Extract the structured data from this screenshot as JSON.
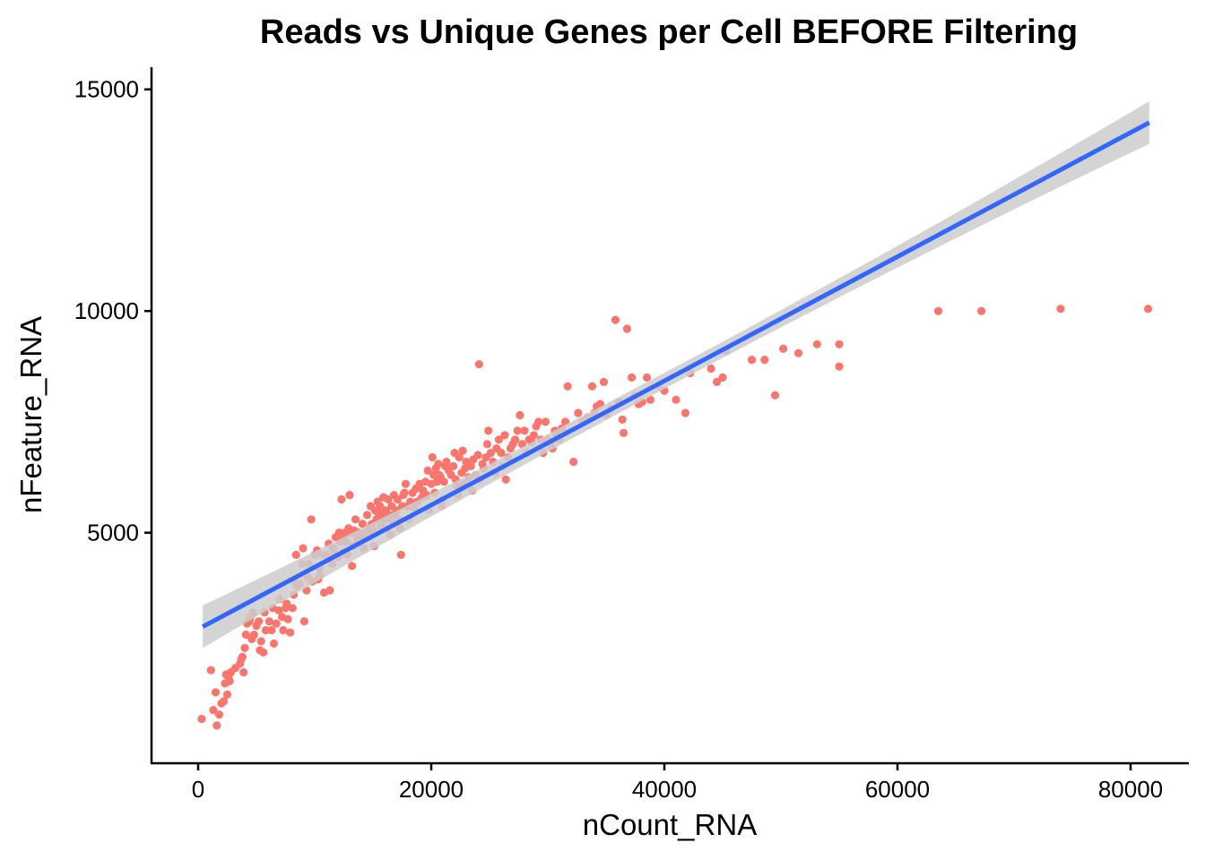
{
  "chart_data": {
    "type": "scatter",
    "title": "Reads vs Unique Genes per Cell BEFORE Filtering",
    "xlabel": "nCount_RNA",
    "ylabel": "nFeature_RNA",
    "xlim": [
      -4000,
      85000
    ],
    "ylim": [
      -200,
      15500
    ],
    "xticks": [
      0,
      20000,
      40000,
      60000,
      80000
    ],
    "xtick_labels": [
      "0",
      "20000",
      "40000",
      "60000",
      "80000"
    ],
    "yticks": [
      5000,
      10000,
      15000
    ],
    "ytick_labels": [
      "5000",
      "10000",
      "15000"
    ],
    "grid": false,
    "legend": "none",
    "point_color": "#f8766d",
    "fit_line": {
      "method": "linear",
      "color": "#3366ff",
      "ribbon_color": "#cccccc",
      "x_start": 400,
      "x_end": 81600,
      "y_start": 2880,
      "y_end": 14250,
      "band_start": 180,
      "band_end": 480
    },
    "points": [
      [
        300,
        800
      ],
      [
        1100,
        1900
      ],
      [
        1300,
        1000
      ],
      [
        1500,
        1400
      ],
      [
        1600,
        650
      ],
      [
        1800,
        900
      ],
      [
        2000,
        1150
      ],
      [
        2200,
        1200
      ],
      [
        2300,
        1600
      ],
      [
        2400,
        1800
      ],
      [
        2500,
        1350
      ],
      [
        2600,
        1750
      ],
      [
        2700,
        1650
      ],
      [
        2800,
        1850
      ],
      [
        3200,
        1950
      ],
      [
        3600,
        2050
      ],
      [
        3700,
        2150
      ],
      [
        3800,
        2200
      ],
      [
        3900,
        1850
      ],
      [
        4000,
        2400
      ],
      [
        4100,
        2700
      ],
      [
        4200,
        2950
      ],
      [
        4400,
        3000
      ],
      [
        4500,
        3100
      ],
      [
        4600,
        2600
      ],
      [
        4700,
        3200
      ],
      [
        4800,
        2700
      ],
      [
        5000,
        2900
      ],
      [
        5200,
        3000
      ],
      [
        5300,
        2350
      ],
      [
        5400,
        2550
      ],
      [
        5600,
        2300
      ],
      [
        5700,
        3200
      ],
      [
        5800,
        2800
      ],
      [
        6100,
        3000
      ],
      [
        6300,
        2800
      ],
      [
        6400,
        3300
      ],
      [
        6500,
        2500
      ],
      [
        6700,
        2950
      ],
      [
        6900,
        3250
      ],
      [
        7000,
        3500
      ],
      [
        7200,
        3100
      ],
      [
        7300,
        2800
      ],
      [
        7500,
        3300
      ],
      [
        7600,
        3400
      ],
      [
        7700,
        3050
      ],
      [
        7900,
        2750
      ],
      [
        8100,
        3300
      ],
      [
        8200,
        3600
      ],
      [
        8300,
        3900
      ],
      [
        8400,
        4500
      ],
      [
        8500,
        3800
      ],
      [
        8700,
        3850
      ],
      [
        8900,
        4300
      ],
      [
        9000,
        4650
      ],
      [
        9100,
        3000
      ],
      [
        9300,
        3700
      ],
      [
        9400,
        4000
      ],
      [
        9500,
        4300
      ],
      [
        9700,
        5300
      ],
      [
        9800,
        3900
      ],
      [
        10000,
        4500
      ],
      [
        10200,
        4600
      ],
      [
        10300,
        3950
      ],
      [
        10400,
        4200
      ],
      [
        10500,
        4050
      ],
      [
        10700,
        4500
      ],
      [
        10800,
        3650
      ],
      [
        11000,
        4500
      ],
      [
        11100,
        4400
      ],
      [
        11200,
        4750
      ],
      [
        11300,
        3700
      ],
      [
        11500,
        4300
      ],
      [
        11600,
        4650
      ],
      [
        11700,
        4500
      ],
      [
        11800,
        4900
      ],
      [
        12000,
        4450
      ],
      [
        12100,
        5000
      ],
      [
        12200,
        4800
      ],
      [
        12300,
        5750
      ],
      [
        12400,
        4900
      ],
      [
        12500,
        4550
      ],
      [
        12600,
        5000
      ],
      [
        12700,
        4800
      ],
      [
        12800,
        4500
      ],
      [
        12900,
        5100
      ],
      [
        13000,
        5850
      ],
      [
        13100,
        5000
      ],
      [
        13200,
        4250
      ],
      [
        13300,
        4700
      ],
      [
        13400,
        5050
      ],
      [
        13500,
        5300
      ],
      [
        13600,
        4950
      ],
      [
        13700,
        4850
      ],
      [
        13800,
        5000
      ],
      [
        14000,
        4900
      ],
      [
        14100,
        5200
      ],
      [
        14200,
        4650
      ],
      [
        14400,
        5000
      ],
      [
        14500,
        5400
      ],
      [
        14600,
        4900
      ],
      [
        14700,
        5100
      ],
      [
        14800,
        5600
      ],
      [
        14900,
        5200
      ],
      [
        15000,
        5050
      ],
      [
        15100,
        4700
      ],
      [
        15200,
        5500
      ],
      [
        15300,
        5300
      ],
      [
        15400,
        5700
      ],
      [
        15500,
        5400
      ],
      [
        15600,
        5600
      ],
      [
        15700,
        5150
      ],
      [
        15800,
        5450
      ],
      [
        15900,
        5800
      ],
      [
        16000,
        5300
      ],
      [
        16100,
        5500
      ],
      [
        16200,
        5100
      ],
      [
        16300,
        5750
      ],
      [
        16400,
        5400
      ],
      [
        16500,
        4950
      ],
      [
        16600,
        5600
      ],
      [
        16700,
        5250
      ],
      [
        16800,
        5850
      ],
      [
        16900,
        5400
      ],
      [
        17000,
        5500
      ],
      [
        17100,
        5750
      ],
      [
        17200,
        5300
      ],
      [
        17300,
        5100
      ],
      [
        17400,
        4500
      ],
      [
        17500,
        5600
      ],
      [
        17600,
        5850
      ],
      [
        17700,
        5900
      ],
      [
        17800,
        6100
      ],
      [
        18000,
        5600
      ],
      [
        18100,
        5300
      ],
      [
        18200,
        5700
      ],
      [
        18400,
        5900
      ],
      [
        18600,
        5550
      ],
      [
        18700,
        6000
      ],
      [
        18800,
        5700
      ],
      [
        19000,
        6100
      ],
      [
        19200,
        5800
      ],
      [
        19300,
        5950
      ],
      [
        19500,
        6150
      ],
      [
        19600,
        5850
      ],
      [
        19700,
        6400
      ],
      [
        19800,
        5500
      ],
      [
        20000,
        6100
      ],
      [
        20100,
        6700
      ],
      [
        20200,
        6300
      ],
      [
        20300,
        5900
      ],
      [
        20400,
        6450
      ],
      [
        20500,
        6150
      ],
      [
        20600,
        6550
      ],
      [
        20700,
        6300
      ],
      [
        20800,
        6250
      ],
      [
        20900,
        5600
      ],
      [
        21000,
        5750
      ],
      [
        21100,
        6150
      ],
      [
        21200,
        6500
      ],
      [
        21300,
        6600
      ],
      [
        21500,
        6400
      ],
      [
        21700,
        6300
      ],
      [
        21900,
        6500
      ],
      [
        22000,
        6800
      ],
      [
        22100,
        6200
      ],
      [
        22200,
        6050
      ],
      [
        22300,
        5850
      ],
      [
        22400,
        6700
      ],
      [
        22600,
        6350
      ],
      [
        22700,
        6850
      ],
      [
        22800,
        6100
      ],
      [
        22900,
        6450
      ],
      [
        23000,
        6600
      ],
      [
        23200,
        6250
      ],
      [
        23400,
        6500
      ],
      [
        23500,
        5950
      ],
      [
        23600,
        6650
      ],
      [
        23800,
        6300
      ],
      [
        24000,
        6750
      ],
      [
        24100,
        8800
      ],
      [
        24200,
        6200
      ],
      [
        24400,
        6550
      ],
      [
        24500,
        6450
      ],
      [
        24700,
        6700
      ],
      [
        24800,
        7000
      ],
      [
        24900,
        7300
      ],
      [
        25100,
        6800
      ],
      [
        25300,
        6600
      ],
      [
        25500,
        6350
      ],
      [
        25600,
        6900
      ],
      [
        25800,
        7100
      ],
      [
        26000,
        6800
      ],
      [
        26100,
        6500
      ],
      [
        26300,
        7200
      ],
      [
        26400,
        6200
      ],
      [
        26600,
        6700
      ],
      [
        26800,
        6900
      ],
      [
        27000,
        7000
      ],
      [
        27200,
        7100
      ],
      [
        27400,
        7300
      ],
      [
        27600,
        7650
      ],
      [
        27800,
        7000
      ],
      [
        28000,
        7300
      ],
      [
        28200,
        6800
      ],
      [
        28400,
        7100
      ],
      [
        28600,
        7050
      ],
      [
        28800,
        7200
      ],
      [
        29000,
        7400
      ],
      [
        29200,
        7500
      ],
      [
        29400,
        7100
      ],
      [
        29600,
        6800
      ],
      [
        29800,
        7500
      ],
      [
        30000,
        7100
      ],
      [
        30200,
        7000
      ],
      [
        30400,
        6900
      ],
      [
        30600,
        7300
      ],
      [
        30800,
        7200
      ],
      [
        31000,
        7100
      ],
      [
        31200,
        7350
      ],
      [
        31500,
        7500
      ],
      [
        31700,
        8300
      ],
      [
        32200,
        6600
      ],
      [
        32600,
        7700
      ],
      [
        33000,
        7500
      ],
      [
        33400,
        7600
      ],
      [
        33800,
        8300
      ],
      [
        34000,
        7700
      ],
      [
        34200,
        7850
      ],
      [
        34500,
        7900
      ],
      [
        34800,
        8400
      ],
      [
        35000,
        7650
      ],
      [
        35400,
        7800
      ],
      [
        35800,
        9800
      ],
      [
        36100,
        7950
      ],
      [
        36400,
        7550
      ],
      [
        36500,
        7250
      ],
      [
        36800,
        9600
      ],
      [
        37200,
        8500
      ],
      [
        37500,
        8100
      ],
      [
        37800,
        7900
      ],
      [
        38100,
        7950
      ],
      [
        38500,
        8500
      ],
      [
        38800,
        8000
      ],
      [
        39500,
        8300
      ],
      [
        40000,
        8200
      ],
      [
        41000,
        8000
      ],
      [
        41800,
        7700
      ],
      [
        42200,
        8600
      ],
      [
        44000,
        8700
      ],
      [
        44500,
        8400
      ],
      [
        45000,
        8500
      ],
      [
        45300,
        9100
      ],
      [
        47500,
        8900
      ],
      [
        48600,
        8900
      ],
      [
        49500,
        8100
      ],
      [
        50200,
        9150
      ],
      [
        51500,
        9050
      ],
      [
        53100,
        9250
      ],
      [
        55000,
        9250
      ],
      [
        55000,
        8750
      ],
      [
        63500,
        10000
      ],
      [
        67200,
        10000
      ],
      [
        74000,
        10050
      ],
      [
        81500,
        10050
      ]
    ]
  }
}
